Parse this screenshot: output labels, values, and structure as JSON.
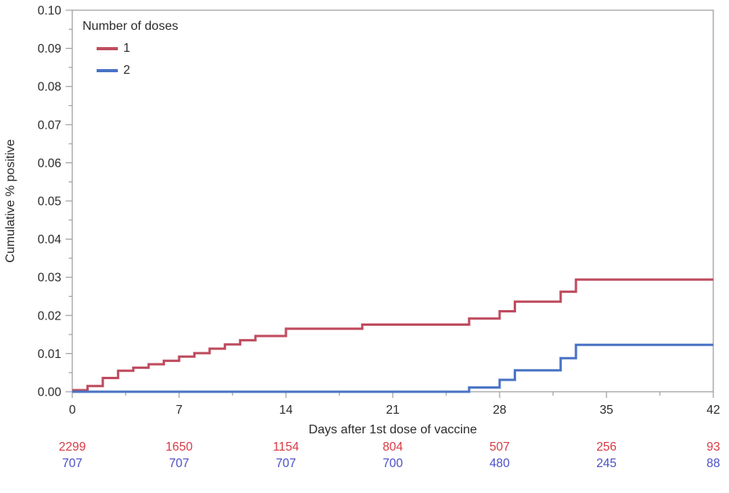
{
  "chart_data": {
    "type": "line",
    "subtype": "step-cumulative-incidence",
    "title": "",
    "xlabel": "Days after 1st dose of vaccine",
    "ylabel": "Cumulative % positive",
    "background_color": "#ffffff",
    "frame_color": "#a0a0a0",
    "text_color": "#2b2b2b",
    "grid": "off",
    "legend": {
      "position": "top-left-inside",
      "title": "Number of doses",
      "entries": [
        {
          "label": "1",
          "color": "#bf4c5f"
        },
        {
          "label": "2",
          "color": "#4a73c4"
        }
      ]
    },
    "x_axis": {
      "min": 0,
      "max": 42,
      "major_ticks": [
        0,
        7,
        14,
        21,
        28,
        35,
        42
      ],
      "tick_labels": [
        "0",
        "7",
        "14",
        "21",
        "28",
        "35",
        "42"
      ],
      "minor_tick_step": 3.5
    },
    "y_axis": {
      "min": 0,
      "max": 0.1,
      "major_tick_step": 0.01,
      "minor_tick_step": 0.005,
      "tick_labels": [
        "0.00",
        "0.01",
        "0.02",
        "0.03",
        "0.04",
        "0.05",
        "0.06",
        "0.07",
        "0.08",
        "0.09",
        "0.10"
      ]
    },
    "series": [
      {
        "name": "1",
        "color": "#bf4c5f",
        "line_width": 3,
        "step_points": [
          [
            0,
            0.0004
          ],
          [
            1,
            0.0015
          ],
          [
            2,
            0.0036
          ],
          [
            3,
            0.0055
          ],
          [
            4,
            0.0063
          ],
          [
            5,
            0.0072
          ],
          [
            6,
            0.0081
          ],
          [
            7,
            0.0092
          ],
          [
            8,
            0.0101
          ],
          [
            9,
            0.0113
          ],
          [
            10,
            0.0124
          ],
          [
            11,
            0.0135
          ],
          [
            12,
            0.0146
          ],
          [
            14,
            0.0165
          ],
          [
            19,
            0.0176
          ],
          [
            26,
            0.0192
          ],
          [
            28,
            0.0211
          ],
          [
            29,
            0.0236
          ],
          [
            32,
            0.0262
          ],
          [
            33,
            0.0294
          ]
        ],
        "end_x": 42
      },
      {
        "name": "2",
        "color": "#4a73c4",
        "line_width": 3,
        "step_points": [
          [
            0,
            0.0
          ],
          [
            26,
            0.0011
          ],
          [
            28,
            0.0031
          ],
          [
            29,
            0.0056
          ],
          [
            32,
            0.0088
          ],
          [
            33,
            0.0123
          ]
        ],
        "end_x": 42
      }
    ],
    "at_risk_table": {
      "tick_days": [
        0,
        7,
        14,
        21,
        28,
        35,
        42
      ],
      "rows": [
        {
          "group": "1",
          "color": "#d93b46",
          "values": [
            "2299",
            "1650",
            "1154",
            "804",
            "507",
            "256",
            "93"
          ]
        },
        {
          "group": "2",
          "color": "#4c50c8",
          "values": [
            "707",
            "707",
            "707",
            "700",
            "480",
            "245",
            "88"
          ]
        }
      ]
    }
  }
}
